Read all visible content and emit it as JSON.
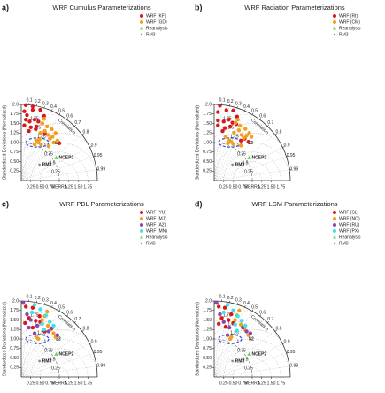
{
  "chart_data": [
    {
      "type": "taylor",
      "panel_label": "a)",
      "title": "WRF Cumulus Parameterizations",
      "ylabel": "Standardized Deviations (Normalized)",
      "corr_label": "Correlation",
      "rlim": [
        0,
        2
      ],
      "yticks": [
        {
          "value": 0.25,
          "label": "0.25"
        },
        {
          "value": 0.5,
          "label": "0.50"
        },
        {
          "value": 0.75,
          "label": "0.75"
        },
        {
          "value": 1,
          "label": "1.00"
        },
        {
          "value": 1.25,
          "label": "1.25"
        },
        {
          "value": 1.5,
          "label": "1.50"
        },
        {
          "value": 1.75,
          "label": "1.75"
        },
        {
          "value": 2,
          "label": "2.0"
        }
      ],
      "xticks": [
        {
          "value": 0.25,
          "label": "0.25"
        },
        {
          "value": 0.5,
          "label": "0.50"
        },
        {
          "value": 0.75,
          "label": "0.75"
        },
        {
          "value": 1,
          "label": "MERRA"
        },
        {
          "value": 1.25,
          "label": "1.25"
        },
        {
          "value": 1.5,
          "label": "1.50"
        },
        {
          "value": 1.75,
          "label": "1.75"
        }
      ],
      "corrticks": [
        0.1,
        0.2,
        0.3,
        0.4,
        0.5,
        0.6,
        0.7,
        0.8,
        0.9,
        0.95,
        0.99
      ],
      "rmsticks": [
        0.25,
        0.5,
        0.75,
        1,
        1.25,
        1.5,
        1.75
      ],
      "annotations": [
        {
          "text": "S2",
          "x": 0.88,
          "y": 0.98
        }
      ],
      "series": [
        {
          "name": "WRF (KF)",
          "color": "#d7191c",
          "marker": "circle",
          "x": [
            0.08,
            0.12,
            0.3,
            0.5,
            0.12,
            0.22,
            0.35,
            0.45,
            0.08,
            0.25,
            0.4,
            0.55,
            0.2,
            0.38,
            0.6,
            0.15,
            0.3,
            0.62,
            1.0
          ],
          "values": [
            1.82,
            1.98,
            1.86,
            1.86,
            1.6,
            1.55,
            1.6,
            1.55,
            1.45,
            1.4,
            1.42,
            1.5,
            1.3,
            1.35,
            1.7,
            1.72,
            1.95,
            1.25,
            0.98
          ]
        },
        {
          "name": "WRF (GD)",
          "color": "#f0a020",
          "marker": "circle",
          "x": [
            0.5,
            0.62,
            0.7,
            0.75,
            0.82,
            0.9,
            0.95,
            0.68,
            0.55,
            0.6,
            0.8,
            0.85,
            0.45,
            0.52,
            0.4,
            0.48,
            0.35,
            0.72
          ],
          "values": [
            1.25,
            1.3,
            1.2,
            1.1,
            1.15,
            1.25,
            1.05,
            1.42,
            1.5,
            1.62,
            1.35,
            1.0,
            1.0,
            0.95,
            1.05,
            1.08,
            0.95,
            0.9
          ]
        },
        {
          "name": "Reanalysis",
          "color": "#7ccf6a",
          "marker": "triangle",
          "x": [
            0.92
          ],
          "values": [
            0.6
          ],
          "point_labels": [
            "NCEP2"
          ]
        },
        {
          "name": "RM3",
          "color": "#888888",
          "marker": "dot",
          "x": [
            0.48
          ],
          "values": [
            0.42
          ],
          "point_labels": [
            "RM3"
          ]
        }
      ]
    },
    {
      "type": "taylor",
      "panel_label": "b)",
      "title": "WRF Radiation Parameterizations",
      "ylabel": "Standardized Deviations (Normalized)",
      "corr_label": "Correlation",
      "rlim": [
        0,
        2
      ],
      "yticks": [
        {
          "value": 0.25,
          "label": "0.25"
        },
        {
          "value": 0.5,
          "label": "0.50"
        },
        {
          "value": 0.75,
          "label": "0.75"
        },
        {
          "value": 1,
          "label": "1.00"
        },
        {
          "value": 1.25,
          "label": "1.25"
        },
        {
          "value": 1.5,
          "label": "1.50"
        },
        {
          "value": 1.75,
          "label": "1.75"
        },
        {
          "value": 2,
          "label": "2.0"
        }
      ],
      "xticks": [
        {
          "value": 0.25,
          "label": "0.25"
        },
        {
          "value": 0.5,
          "label": "0.50"
        },
        {
          "value": 0.75,
          "label": "0.75"
        },
        {
          "value": 1,
          "label": "MERRA"
        },
        {
          "value": 1.25,
          "label": "1.25"
        },
        {
          "value": 1.5,
          "label": "1.50"
        },
        {
          "value": 1.75,
          "label": "1.75"
        }
      ],
      "corrticks": [
        0.1,
        0.2,
        0.3,
        0.4,
        0.5,
        0.6,
        0.7,
        0.8,
        0.9,
        0.95,
        0.99
      ],
      "rmsticks": [
        0.25,
        0.5,
        0.75,
        1,
        1.25,
        1.5,
        1.75
      ],
      "annotations": [
        {
          "text": "S2",
          "x": 0.88,
          "y": 0.98
        }
      ],
      "series": [
        {
          "name": "WRF (Rt)",
          "color": "#d7191c",
          "marker": "circle",
          "x": [
            0.1,
            0.15,
            0.32,
            0.5,
            0.1,
            0.25,
            0.38,
            0.48,
            0.1,
            0.28,
            0.42,
            0.58,
            0.22,
            0.6,
            0.9,
            0.7,
            0.8
          ],
          "values": [
            1.8,
            1.97,
            1.85,
            1.84,
            1.58,
            1.55,
            1.6,
            1.52,
            1.45,
            1.38,
            1.42,
            1.48,
            1.3,
            1.68,
            1.02,
            1.05,
            1.1
          ]
        },
        {
          "name": "WRF (CM)",
          "color": "#f0a020",
          "marker": "circle",
          "x": [
            0.52,
            0.65,
            0.72,
            0.78,
            0.85,
            0.92,
            0.98,
            0.68,
            0.56,
            0.62,
            0.82,
            0.45,
            0.5,
            0.4,
            0.36,
            0.3,
            0.7
          ],
          "values": [
            1.26,
            1.32,
            1.2,
            1.12,
            1.18,
            1.25,
            1.15,
            1.44,
            1.52,
            1.6,
            1.36,
            1.02,
            0.96,
            1.05,
            0.98,
            1.15,
            0.92
          ]
        },
        {
          "name": "Reanalysis",
          "color": "#7ccf6a",
          "marker": "triangle",
          "x": [
            0.92
          ],
          "values": [
            0.6
          ],
          "point_labels": [
            "NCEP2"
          ]
        },
        {
          "name": "RM3",
          "color": "#888888",
          "marker": "dot",
          "x": [
            0.48
          ],
          "values": [
            0.42
          ],
          "point_labels": [
            "RM3"
          ]
        }
      ]
    },
    {
      "type": "taylor",
      "panel_label": "c)",
      "title": "WRF PBL Parameterizations",
      "ylabel": "Standardized Deviations (Normalized)",
      "corr_label": "Correlation",
      "rlim": [
        0,
        2
      ],
      "yticks": [
        {
          "value": 0.25,
          "label": "0.25"
        },
        {
          "value": 0.5,
          "label": "0.50"
        },
        {
          "value": 0.75,
          "label": "0.75"
        },
        {
          "value": 1,
          "label": "1.00"
        },
        {
          "value": 1.25,
          "label": "1.25"
        },
        {
          "value": 1.5,
          "label": "1.50"
        },
        {
          "value": 1.75,
          "label": "1.75"
        },
        {
          "value": 2,
          "label": "2.0"
        }
      ],
      "xticks": [
        {
          "value": 0.25,
          "label": "0.25"
        },
        {
          "value": 0.5,
          "label": "0.50"
        },
        {
          "value": 0.75,
          "label": "0.75"
        },
        {
          "value": 1,
          "label": "MERRA"
        },
        {
          "value": 1.25,
          "label": "1.25"
        },
        {
          "value": 1.5,
          "label": "1.50"
        },
        {
          "value": 1.75,
          "label": "1.75"
        }
      ],
      "corrticks": [
        0.1,
        0.2,
        0.3,
        0.4,
        0.5,
        0.6,
        0.7,
        0.8,
        0.9,
        0.95,
        0.99
      ],
      "rmsticks": [
        0.25,
        0.5,
        0.75,
        1,
        1.25,
        1.5,
        1.75
      ],
      "annotations": [
        {
          "text": "S2",
          "x": 0.9,
          "y": 1.0
        }
      ],
      "series": [
        {
          "name": "WRF (YU)",
          "color": "#d7191c",
          "marker": "circle",
          "x": [
            0.12,
            0.3,
            0.48,
            0.2,
            0.38,
            0.1,
            0.3,
            0.5,
            0.62
          ],
          "values": [
            1.85,
            1.82,
            1.6,
            1.55,
            1.48,
            1.42,
            1.3,
            1.45,
            1.2
          ]
        },
        {
          "name": "WRF (MJ)",
          "color": "#f0a020",
          "marker": "circle",
          "x": [
            0.55,
            0.7,
            0.78,
            0.85,
            0.62,
            0.45,
            0.4,
            0.68,
            0.9
          ],
          "values": [
            1.5,
            1.35,
            1.25,
            1.15,
            1.6,
            1.0,
            1.05,
            1.72,
            1.05
          ]
        },
        {
          "name": "WRF (A2)",
          "color": "#8e44ad",
          "marker": "circle",
          "x": [
            0.05,
            0.15,
            0.25,
            0.2,
            0.42,
            0.35,
            0.8,
            0.72,
            0.95
          ],
          "values": [
            1.95,
            1.65,
            1.5,
            1.3,
            1.35,
            1.15,
            1.28,
            1.2,
            1.1
          ]
        },
        {
          "name": "WRF (MN)",
          "color": "#3fe0e8",
          "marker": "circle",
          "x": [
            0.35,
            0.5,
            0.65,
            0.55,
            0.28,
            0.75,
            0.6,
            0.85
          ],
          "values": [
            1.9,
            1.78,
            1.62,
            1.4,
            1.7,
            1.45,
            1.25,
            1.35
          ]
        },
        {
          "name": "Reanalysis",
          "color": "#7ccf6a",
          "marker": "triangle",
          "x": [
            0.92
          ],
          "values": [
            0.6
          ],
          "point_labels": [
            "NCEP2"
          ]
        },
        {
          "name": "RM3",
          "color": "#888888",
          "marker": "dot",
          "x": [
            0.48
          ],
          "values": [
            0.42
          ],
          "point_labels": [
            "RM3"
          ]
        }
      ]
    },
    {
      "type": "taylor",
      "panel_label": "d)",
      "title": "WRF LSM Parameterizations",
      "ylabel": "Standardized Deviations (Normalized)",
      "corr_label": "Correlation",
      "rlim": [
        0,
        2
      ],
      "yticks": [
        {
          "value": 0.25,
          "label": "0.25"
        },
        {
          "value": 0.5,
          "label": "0.50"
        },
        {
          "value": 0.75,
          "label": "0.75"
        },
        {
          "value": 1,
          "label": "1.00"
        },
        {
          "value": 1.25,
          "label": "1.25"
        },
        {
          "value": 1.5,
          "label": "1.50"
        },
        {
          "value": 1.75,
          "label": "1.75"
        },
        {
          "value": 2,
          "label": "2.0"
        }
      ],
      "xticks": [
        {
          "value": 0.25,
          "label": "0.25"
        },
        {
          "value": 0.5,
          "label": "0.50"
        },
        {
          "value": 0.75,
          "label": "0.75"
        },
        {
          "value": 1,
          "label": "MERRA"
        },
        {
          "value": 1.25,
          "label": "1.25"
        },
        {
          "value": 1.5,
          "label": "1.50"
        },
        {
          "value": 1.75,
          "label": "1.75"
        }
      ],
      "corrticks": [
        0.1,
        0.2,
        0.3,
        0.4,
        0.5,
        0.6,
        0.7,
        0.8,
        0.9,
        0.95,
        0.99
      ],
      "rmsticks": [
        0.25,
        0.5,
        0.75,
        1,
        1.25,
        1.5,
        1.75
      ],
      "annotations": [
        {
          "text": "S2",
          "x": 0.9,
          "y": 1.0
        }
      ],
      "series": [
        {
          "name": "WRF (SL)",
          "color": "#d7191c",
          "marker": "circle",
          "x": [
            0.12,
            0.28,
            0.45,
            0.2,
            0.38,
            0.12,
            0.3,
            0.5
          ],
          "values": [
            1.85,
            1.82,
            1.65,
            1.55,
            1.5,
            1.4,
            1.32,
            1.42
          ]
        },
        {
          "name": "WRF (NO)",
          "color": "#f0a020",
          "marker": "circle",
          "x": [
            0.55,
            0.7,
            0.8,
            0.6,
            0.45,
            0.42,
            0.66,
            0.9
          ],
          "values": [
            1.5,
            1.38,
            1.25,
            1.62,
            1.05,
            1.0,
            1.75,
            1.1
          ]
        },
        {
          "name": "WRF (RU)",
          "color": "#8e44ad",
          "marker": "circle",
          "x": [
            0.06,
            0.15,
            0.25,
            0.4,
            0.75,
            0.85,
            0.95,
            0.35
          ],
          "values": [
            1.95,
            1.65,
            1.45,
            1.3,
            1.3,
            1.2,
            1.15,
            1.1
          ]
        },
        {
          "name": "WRF (PX)",
          "color": "#3fe0e8",
          "marker": "circle",
          "x": [
            0.35,
            0.5,
            0.62,
            0.55,
            0.25,
            0.72,
            0.82,
            0.6
          ],
          "values": [
            1.9,
            1.75,
            1.6,
            1.38,
            1.7,
            1.48,
            1.35,
            1.22
          ]
        },
        {
          "name": "Reanalysis",
          "color": "#7ccf6a",
          "marker": "triangle",
          "x": [
            0.92
          ],
          "values": [
            0.6
          ],
          "point_labels": [
            "NCEP2"
          ]
        },
        {
          "name": "RM3",
          "color": "#888888",
          "marker": "dot",
          "x": [
            0.48
          ],
          "values": [
            0.42
          ],
          "point_labels": [
            "RM3"
          ]
        }
      ]
    }
  ]
}
